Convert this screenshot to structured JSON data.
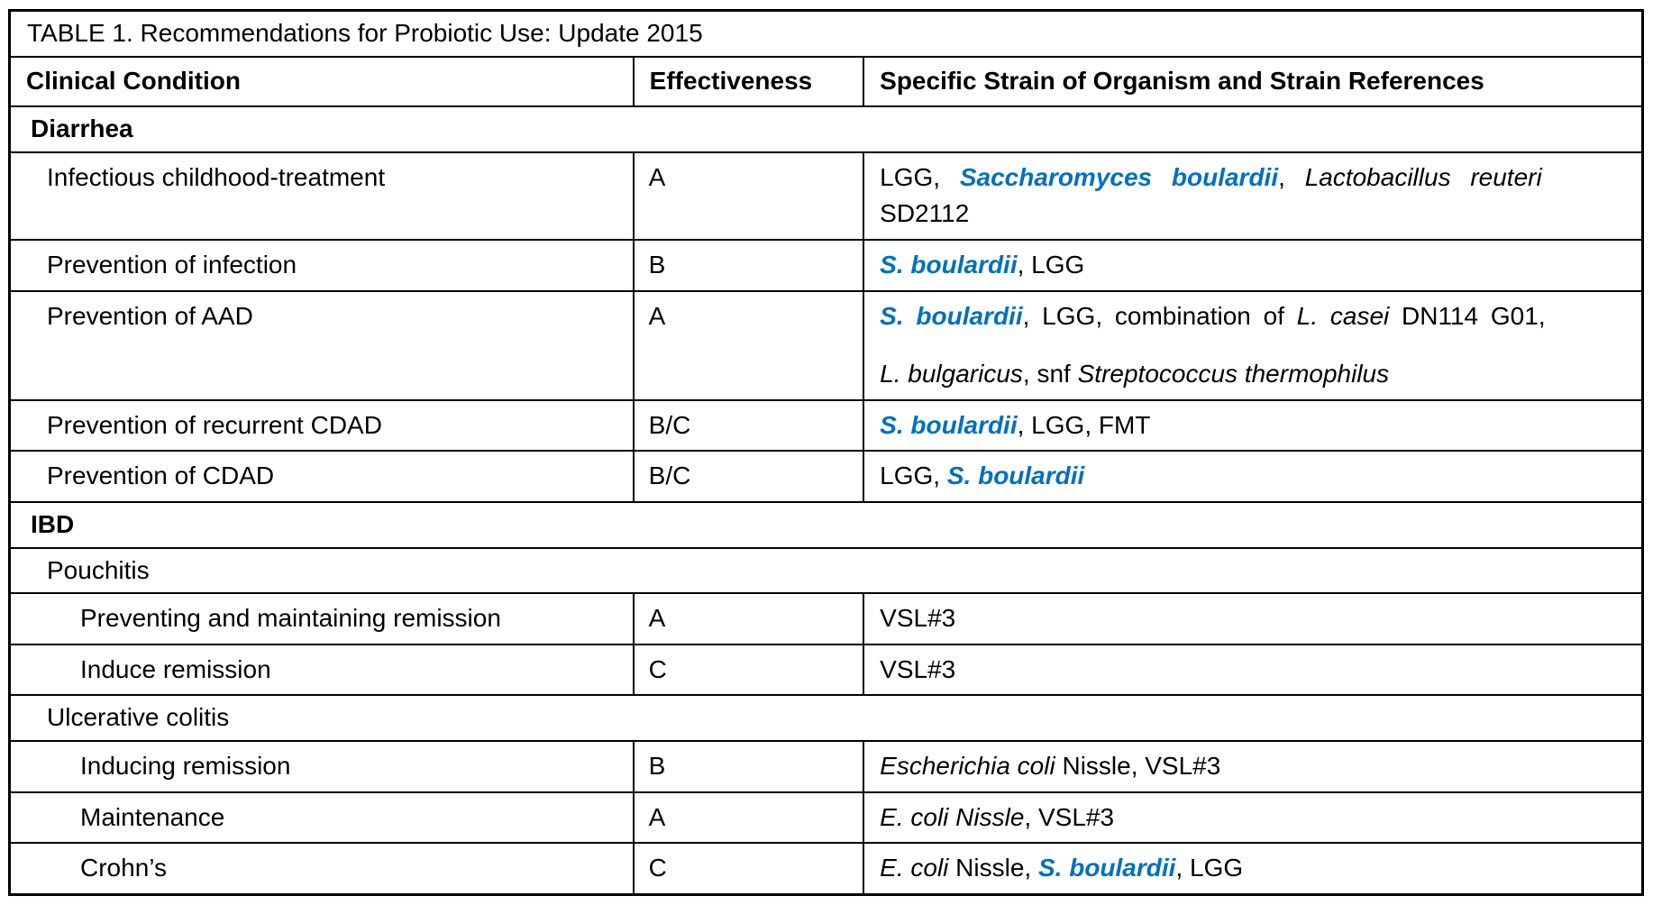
{
  "colors": {
    "accent_blue": "#0070c0",
    "text": "#000000",
    "border": "#000000",
    "background": "#ffffff"
  },
  "table": {
    "title": "TABLE 1. Recommendations for Probiotic Use: Update 2015",
    "columns": [
      "Clinical Condition",
      "Effectiveness",
      "Specific Strain of Organism and Strain References"
    ],
    "rows": [
      {
        "kind": "section",
        "style": "bold",
        "level": 0,
        "label": "Diarrhea"
      },
      {
        "kind": "item",
        "level": 1,
        "condition": "Infectious childhood-treatment",
        "effectiveness": "A",
        "strains": [
          {
            "spread": "wide",
            "segs": [
              {
                "t": "LGG, "
              },
              {
                "t": "Saccharomyces boulardii",
                "s": "blue"
              },
              {
                "t": ", "
              },
              {
                "t": "Lactobacillus reuteri",
                "s": "it"
              }
            ]
          },
          {
            "segs": [
              {
                "t": "SD2112"
              }
            ]
          }
        ]
      },
      {
        "kind": "item",
        "level": 1,
        "condition": "Prevention of infection",
        "effectiveness": "B",
        "strains": [
          {
            "segs": [
              {
                "t": "S. boulardii",
                "s": "blue"
              },
              {
                "t": ", LGG"
              }
            ]
          }
        ]
      },
      {
        "kind": "item",
        "level": 1,
        "spaced": true,
        "condition": "Prevention of AAD",
        "effectiveness": "A",
        "strains": [
          {
            "spread": "slight",
            "segs": [
              {
                "t": "S. boulardii",
                "s": "blue"
              },
              {
                "t": ", LGG, combination of "
              },
              {
                "t": "L. casei",
                "s": "it"
              },
              {
                "t": " DN114 G01,"
              }
            ]
          },
          {
            "segs": [
              {
                "t": "L. bulgaricus",
                "s": "it"
              },
              {
                "t": ", snf "
              },
              {
                "t": "Streptococcus thermophilus",
                "s": "it"
              }
            ]
          }
        ]
      },
      {
        "kind": "item",
        "level": 1,
        "condition": "Prevention of recurrent CDAD",
        "effectiveness": "B/C",
        "strains": [
          {
            "segs": [
              {
                "t": "S. boulardii",
                "s": "blue"
              },
              {
                "t": ", LGG, FMT"
              }
            ]
          }
        ]
      },
      {
        "kind": "item",
        "level": 1,
        "condition": "Prevention of CDAD",
        "effectiveness": "B/C",
        "strains": [
          {
            "segs": [
              {
                "t": "LGG, "
              },
              {
                "t": "S. boulardii",
                "s": "blue"
              }
            ]
          }
        ]
      },
      {
        "kind": "section",
        "style": "bold",
        "level": 0,
        "label": "IBD"
      },
      {
        "kind": "section",
        "style": "plain",
        "level": 1,
        "label": "Pouchitis"
      },
      {
        "kind": "item",
        "level": 2,
        "condition": "Preventing and maintaining remission",
        "effectiveness": "A",
        "strains": [
          {
            "segs": [
              {
                "t": "VSL#3"
              }
            ]
          }
        ]
      },
      {
        "kind": "item",
        "level": 2,
        "condition": "Induce remission",
        "effectiveness": "C",
        "strains": [
          {
            "segs": [
              {
                "t": "VSL#3"
              }
            ]
          }
        ]
      },
      {
        "kind": "section",
        "style": "plain",
        "level": 1,
        "label": "Ulcerative colitis"
      },
      {
        "kind": "item",
        "level": 2,
        "condition": "Inducing remission",
        "effectiveness": "B",
        "strains": [
          {
            "segs": [
              {
                "t": "Escherichia coli",
                "s": "it"
              },
              {
                "t": " Nissle, VSL#3"
              }
            ]
          }
        ]
      },
      {
        "kind": "item",
        "level": 2,
        "condition": "Maintenance",
        "effectiveness": "A",
        "strains": [
          {
            "segs": [
              {
                "t": "E. coli Nissle",
                "s": "it"
              },
              {
                "t": ", VSL#3"
              }
            ]
          }
        ]
      },
      {
        "kind": "item",
        "level": 2,
        "condition": "Crohn’s",
        "effectiveness": "C",
        "strains": [
          {
            "segs": [
              {
                "t": "E. coli",
                "s": "it"
              },
              {
                "t": " Nissle, "
              },
              {
                "t": "S. boulardii",
                "s": "blue"
              },
              {
                "t": ", LGG"
              }
            ]
          }
        ]
      }
    ]
  }
}
